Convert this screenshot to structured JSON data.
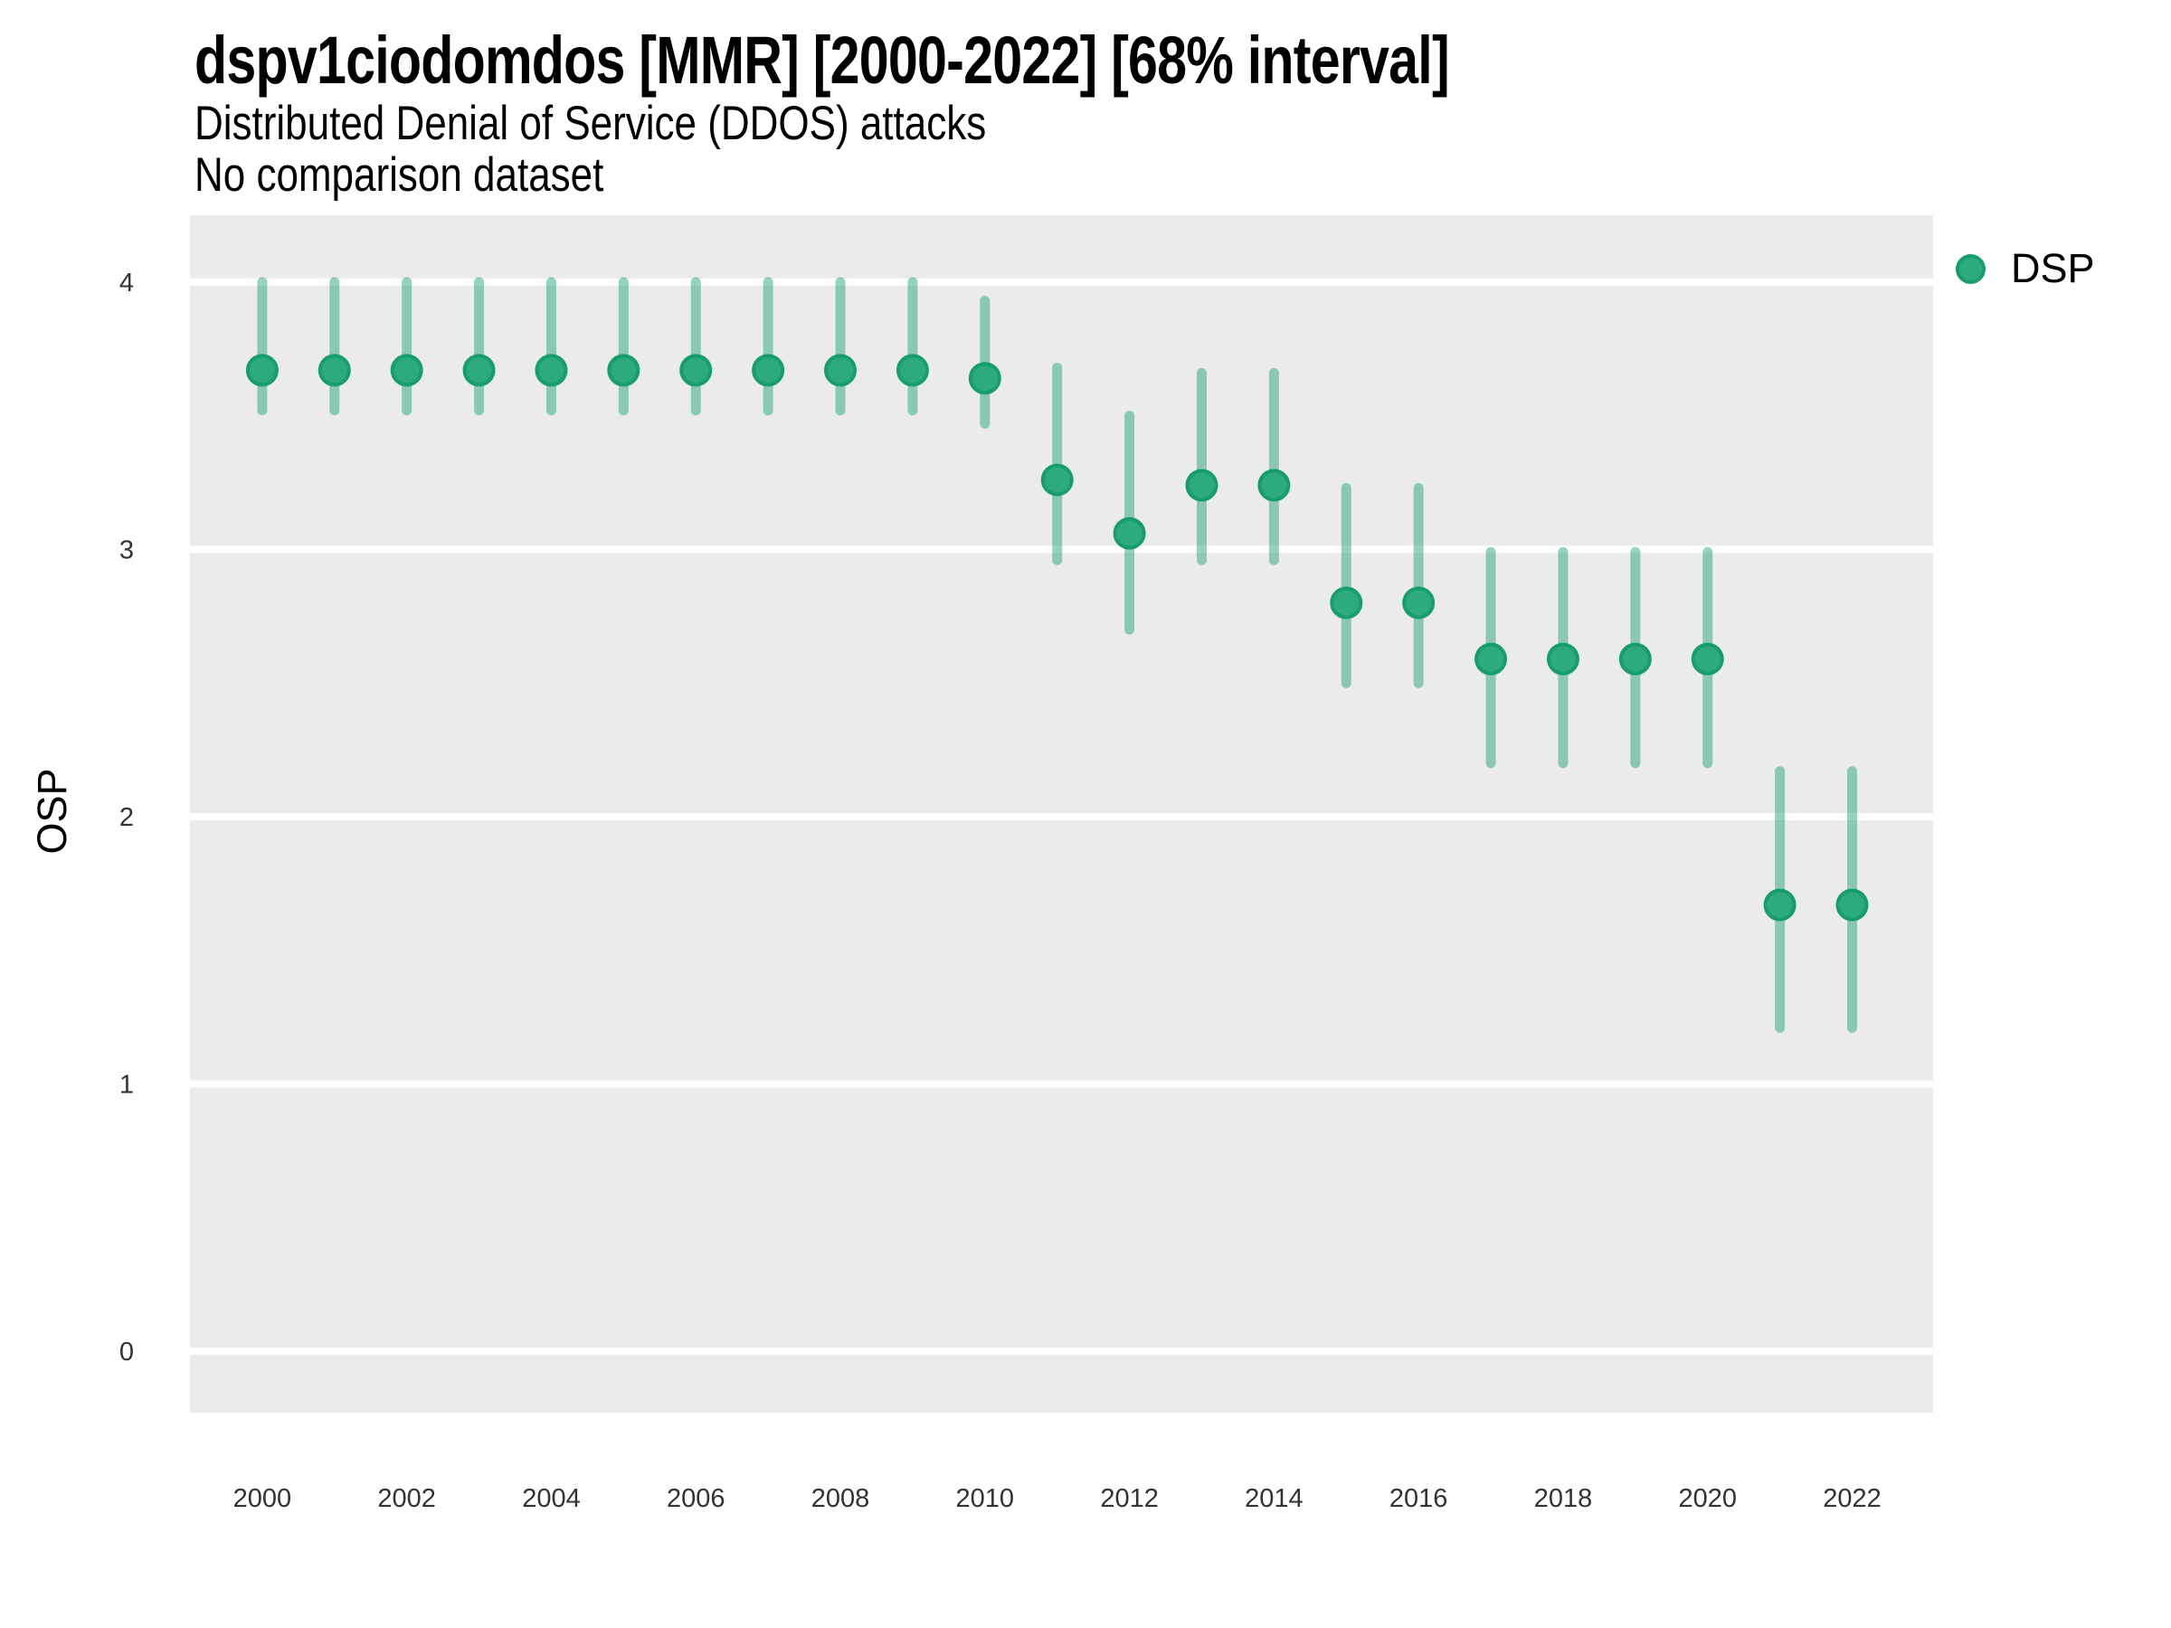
{
  "header": {
    "title": "dspv1ciodomdos [MMR] [2000-2022] [68% interval]",
    "subtitle": "Distributed Denial of Service (DDOS) attacks",
    "note": "No comparison dataset"
  },
  "legend": {
    "items": [
      {
        "label": "DSP",
        "marker": "circle-icon"
      }
    ]
  },
  "colors": {
    "point_fill": "#2EAB7D",
    "point_stroke": "#189E6B",
    "interval_bar": "rgba(27,158,119,0.46)",
    "panel_background": "#EBEBEB",
    "gridline": "#FFFFFF",
    "title_text": "#000000",
    "tick_text": "#333333"
  },
  "chart_data": {
    "type": "scatter",
    "title": "dspv1ciodomdos [MMR] [2000-2022] [68% interval]",
    "subtitle": "Distributed Denial of Service (DDOS) attacks",
    "note": "No comparison dataset",
    "xlabel": "",
    "ylabel": "OSP",
    "interval_label": "68% interval",
    "grid": "major-horizontal-only",
    "legend_position": "right-top",
    "x_ticks": [
      2000,
      2002,
      2004,
      2006,
      2008,
      2010,
      2012,
      2014,
      2016,
      2018,
      2020,
      2022
    ],
    "y_ticks": [
      0,
      1,
      2,
      3,
      4
    ],
    "xlim": [
      1999.0,
      2023.12
    ],
    "ylim": [
      -0.23,
      4.25
    ],
    "series": [
      {
        "name": "DSP",
        "interval": "68%",
        "x": [
          2000,
          2001,
          2002,
          2003,
          2004,
          2005,
          2006,
          2007,
          2008,
          2009,
          2010,
          2011,
          2012,
          2013,
          2014,
          2015,
          2016,
          2017,
          2018,
          2019,
          2020,
          2021,
          2022
        ],
        "y": [
          3.67,
          3.67,
          3.67,
          3.67,
          3.67,
          3.67,
          3.67,
          3.67,
          3.67,
          3.67,
          3.64,
          3.26,
          3.06,
          3.24,
          3.24,
          2.8,
          2.8,
          2.59,
          2.59,
          2.59,
          2.59,
          1.67,
          1.67
        ],
        "y_low": [
          3.52,
          3.52,
          3.52,
          3.52,
          3.52,
          3.52,
          3.52,
          3.52,
          3.52,
          3.52,
          3.47,
          2.96,
          2.7,
          2.96,
          2.96,
          2.5,
          2.5,
          2.2,
          2.2,
          2.2,
          2.2,
          1.21,
          1.21
        ],
        "y_high": [
          4.0,
          4.0,
          4.0,
          4.0,
          4.0,
          4.0,
          4.0,
          4.0,
          4.0,
          4.0,
          3.93,
          3.68,
          3.5,
          3.66,
          3.66,
          3.23,
          3.23,
          2.99,
          2.99,
          2.99,
          2.99,
          2.17,
          2.17
        ]
      }
    ]
  }
}
